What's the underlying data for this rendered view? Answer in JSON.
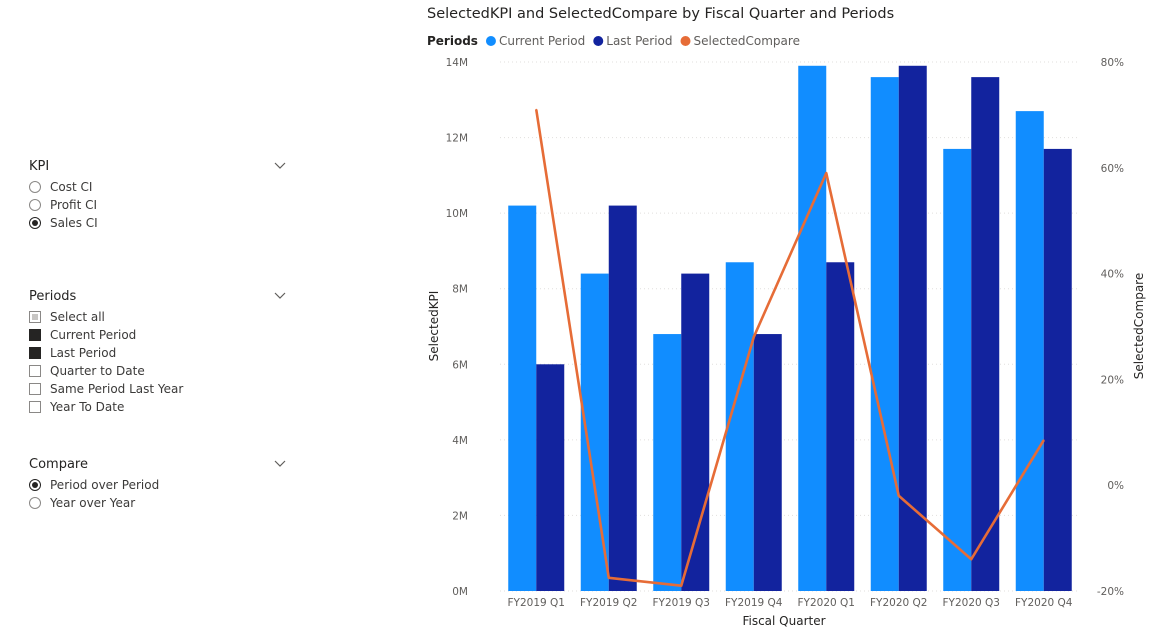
{
  "slicers": {
    "kpi": {
      "title": "KPI",
      "options": [
        {
          "label": "Cost CI",
          "selected": false
        },
        {
          "label": "Profit CI",
          "selected": false
        },
        {
          "label": "Sales CI",
          "selected": true
        }
      ]
    },
    "periods": {
      "title": "Periods",
      "options": [
        {
          "label": "Select all",
          "state": "partial"
        },
        {
          "label": "Current Period",
          "state": "checked"
        },
        {
          "label": "Last Period",
          "state": "checked"
        },
        {
          "label": "Quarter to Date",
          "state": "unchecked"
        },
        {
          "label": "Same Period Last Year",
          "state": "unchecked"
        },
        {
          "label": "Year To Date",
          "state": "unchecked"
        }
      ]
    },
    "compare": {
      "title": "Compare",
      "options": [
        {
          "label": "Period over Period",
          "selected": true
        },
        {
          "label": "Year over Year",
          "selected": false
        }
      ]
    }
  },
  "chart_data": {
    "type": "bar",
    "title": "SelectedKPI and SelectedCompare by Fiscal Quarter and Periods",
    "legend_title": "Periods",
    "legend_position": "top-left",
    "categories": [
      "FY2019 Q1",
      "FY2019 Q2",
      "FY2019 Q3",
      "FY2019 Q4",
      "FY2020 Q1",
      "FY2020 Q2",
      "FY2020 Q3",
      "FY2020 Q4"
    ],
    "series": [
      {
        "name": "Current Period",
        "type": "bar",
        "axis": "left",
        "color": "#118DFF",
        "values": [
          10.2,
          8.4,
          6.8,
          8.7,
          13.9,
          13.6,
          11.7,
          12.7
        ]
      },
      {
        "name": "Last Period",
        "type": "bar",
        "axis": "left",
        "color": "#12239E",
        "values": [
          6.0,
          10.2,
          8.4,
          6.8,
          8.7,
          13.9,
          13.6,
          11.7
        ]
      },
      {
        "name": "SelectedCompare",
        "type": "line",
        "axis": "right",
        "color": "#E66C37",
        "values": [
          0.71,
          -0.175,
          -0.19,
          0.28,
          0.59,
          -0.02,
          -0.14,
          0.085
        ]
      }
    ],
    "xlabel": "Fiscal Quarter",
    "ylabel": "SelectedKPI",
    "y2label": "SelectedCompare",
    "ylim": [
      0,
      14
    ],
    "y_ticks": [
      "0M",
      "2M",
      "4M",
      "6M",
      "8M",
      "10M",
      "12M",
      "14M"
    ],
    "y2lim": [
      -0.2,
      0.8
    ],
    "y2_ticks": [
      "-20%",
      "0%",
      "20%",
      "40%",
      "60%",
      "80%"
    ],
    "grid": true
  }
}
